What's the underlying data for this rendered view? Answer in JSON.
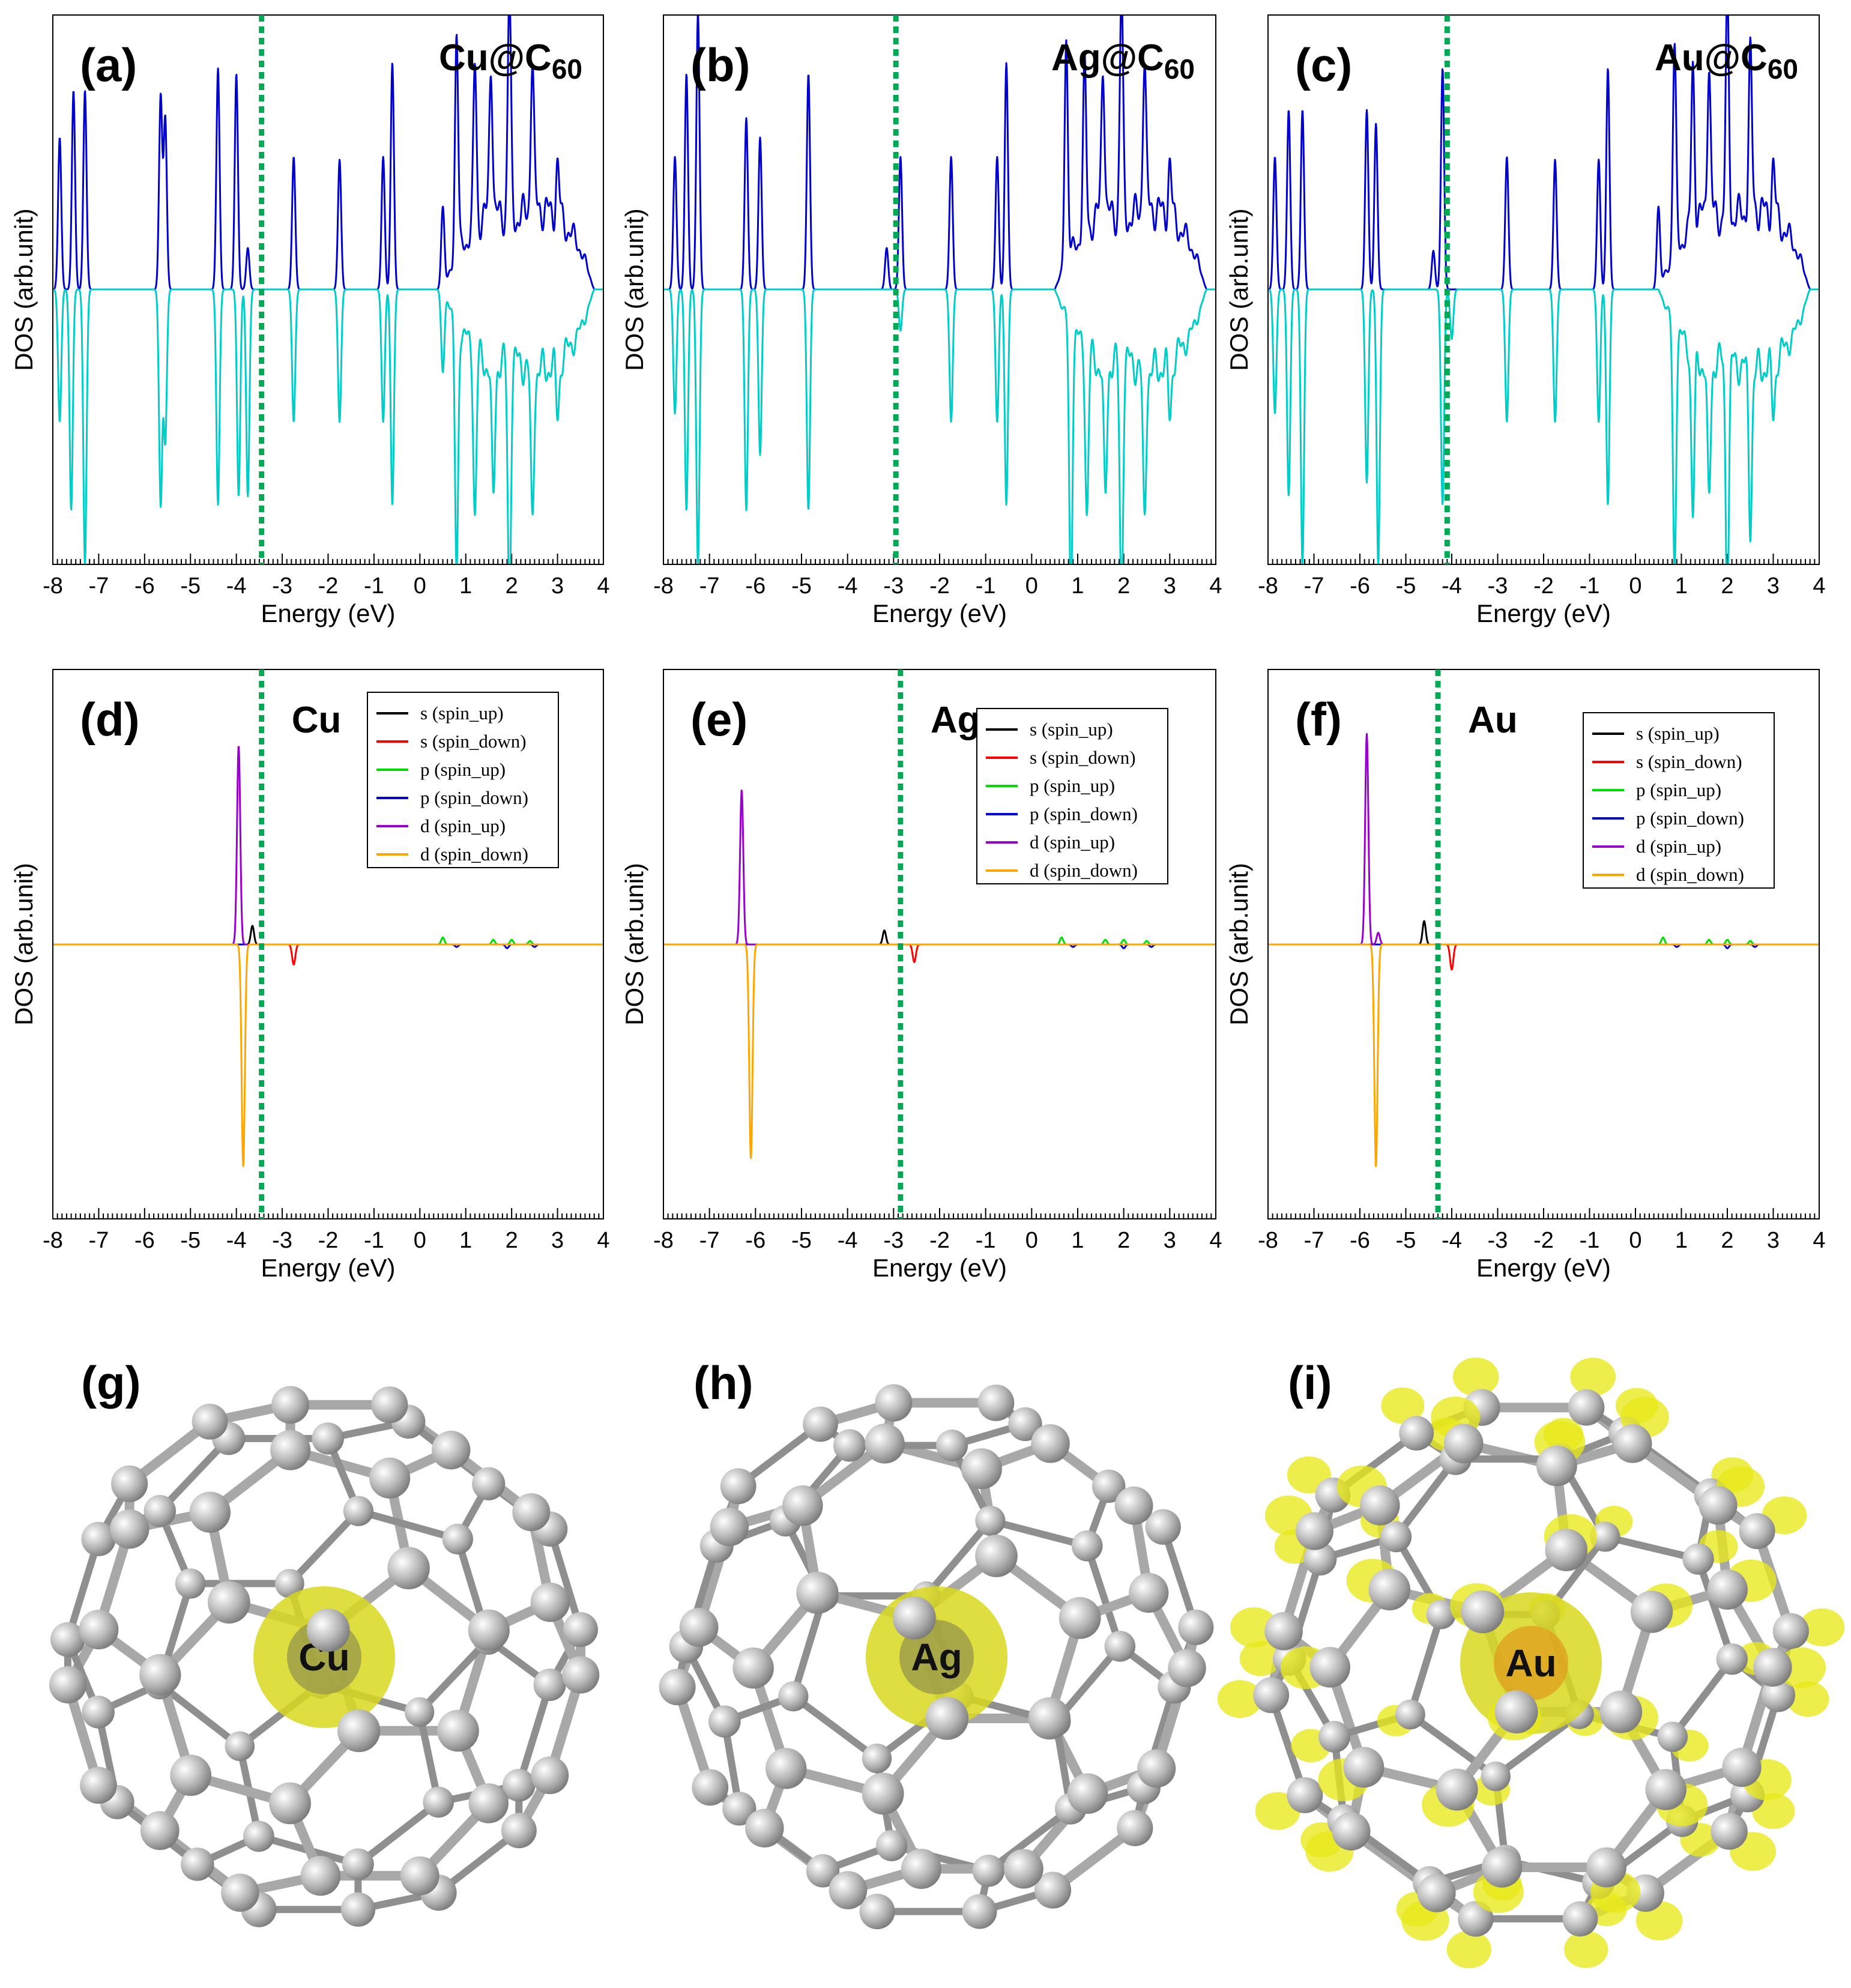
{
  "chart_data": [
    {
      "id": "a",
      "type": "line",
      "panel_label": "(a)",
      "title": "Cu@C",
      "title_sub": "60",
      "xlabel": "Energy (eV)",
      "ylabel": "DOS (arb.unit)",
      "xlim": [
        -8,
        4
      ],
      "x_ticks": [
        "-8",
        "-7",
        "-6",
        "-5",
        "-4",
        "-3",
        "-2",
        "-1",
        "0",
        "1",
        "2",
        "3",
        "4"
      ],
      "fermi_level": -3.45,
      "series": [
        {
          "name": "spin_up",
          "color": "#0000cc",
          "peaks": [
            [
              -7.85,
              0.55
            ],
            [
              -7.55,
              0.72
            ],
            [
              -7.3,
              0.72
            ],
            [
              -5.65,
              0.7
            ],
            [
              -5.55,
              0.62
            ],
            [
              -4.4,
              0.8
            ],
            [
              -4.0,
              0.78
            ],
            [
              -3.75,
              0.15
            ],
            [
              -2.75,
              0.48
            ],
            [
              -1.75,
              0.47
            ],
            [
              -0.8,
              0.48
            ],
            [
              -0.6,
              0.82
            ],
            [
              0.5,
              0.3
            ],
            [
              0.8,
              0.82
            ],
            [
              1.2,
              0.6
            ],
            [
              1.55,
              0.55
            ],
            [
              1.95,
              0.82
            ],
            [
              2.45,
              0.55
            ],
            [
              3.0,
              0.2
            ]
          ],
          "continuum": [
            [
              0.5,
              0.0
            ],
            [
              0.9,
              0.15
            ],
            [
              1.5,
              0.28
            ],
            [
              2.0,
              0.25
            ],
            [
              2.6,
              0.3
            ],
            [
              3.1,
              0.25
            ],
            [
              3.5,
              0.15
            ],
            [
              3.8,
              0.0
            ]
          ]
        },
        {
          "name": "spin_down",
          "color": "#00ccc8",
          "peaks": [
            [
              -7.85,
              -0.48
            ],
            [
              -7.6,
              -0.8
            ],
            [
              -7.3,
              -1.0
            ],
            [
              -5.65,
              -0.78
            ],
            [
              -5.55,
              -0.55
            ],
            [
              -4.4,
              -0.78
            ],
            [
              -3.95,
              -0.75
            ],
            [
              -3.75,
              -0.75
            ],
            [
              -2.75,
              -0.48
            ],
            [
              -1.75,
              -0.48
            ],
            [
              -0.8,
              -0.48
            ],
            [
              -0.6,
              -0.78
            ],
            [
              0.5,
              -0.3
            ],
            [
              0.8,
              -0.92
            ],
            [
              1.2,
              -0.6
            ],
            [
              1.6,
              -0.5
            ],
            [
              1.95,
              -0.88
            ],
            [
              2.45,
              -0.55
            ],
            [
              3.0,
              -0.2
            ]
          ],
          "continuum": [
            [
              0.5,
              0.0
            ],
            [
              0.9,
              -0.15
            ],
            [
              1.5,
              -0.28
            ],
            [
              2.0,
              -0.25
            ],
            [
              2.6,
              -0.3
            ],
            [
              3.1,
              -0.25
            ],
            [
              3.5,
              -0.15
            ],
            [
              3.8,
              0.0
            ]
          ]
        }
      ]
    },
    {
      "id": "b",
      "type": "line",
      "panel_label": "(b)",
      "title": "Ag@C",
      "title_sub": "60",
      "xlabel": "Energy (eV)",
      "ylabel": "DOS (arb.unit)",
      "xlim": [
        -8,
        4
      ],
      "x_ticks": [
        "-8",
        "-7",
        "-6",
        "-5",
        "-4",
        "-3",
        "-2",
        "-1",
        "0",
        "1",
        "2",
        "3",
        "4"
      ],
      "fermi_level": -2.95,
      "series": [
        {
          "name": "spin_up",
          "color": "#0000cc",
          "peaks": [
            [
              -7.75,
              0.48
            ],
            [
              -7.5,
              0.78
            ],
            [
              -7.25,
              1.0
            ],
            [
              -6.2,
              0.62
            ],
            [
              -5.9,
              0.55
            ],
            [
              -4.85,
              0.78
            ],
            [
              -3.15,
              0.15
            ],
            [
              -2.85,
              0.48
            ],
            [
              -1.75,
              0.48
            ],
            [
              -0.75,
              0.48
            ],
            [
              -0.55,
              0.82
            ],
            [
              0.75,
              0.82
            ],
            [
              1.15,
              0.6
            ],
            [
              1.55,
              0.55
            ],
            [
              1.95,
              0.82
            ],
            [
              2.45,
              0.55
            ],
            [
              3.0,
              0.2
            ]
          ],
          "continuum": [
            [
              0.5,
              0.0
            ],
            [
              0.9,
              0.15
            ],
            [
              1.5,
              0.28
            ],
            [
              2.0,
              0.25
            ],
            [
              2.6,
              0.3
            ],
            [
              3.1,
              0.25
            ],
            [
              3.5,
              0.15
            ],
            [
              3.8,
              0.0
            ]
          ]
        },
        {
          "name": "spin_down",
          "color": "#00ccc8",
          "peaks": [
            [
              -7.75,
              -0.45
            ],
            [
              -7.5,
              -0.8
            ],
            [
              -7.25,
              -1.0
            ],
            [
              -6.2,
              -0.8
            ],
            [
              -5.9,
              -0.6
            ],
            [
              -4.85,
              -0.8
            ],
            [
              -2.85,
              -0.15
            ],
            [
              -1.75,
              -0.48
            ],
            [
              -0.75,
              -0.48
            ],
            [
              -0.55,
              -0.78
            ],
            [
              0.85,
              -1.0
            ],
            [
              1.2,
              -0.6
            ],
            [
              1.6,
              -0.5
            ],
            [
              1.95,
              -0.88
            ],
            [
              2.45,
              -0.55
            ],
            [
              3.0,
              -0.2
            ]
          ],
          "continuum": [
            [
              0.5,
              0.0
            ],
            [
              0.9,
              -0.15
            ],
            [
              1.5,
              -0.28
            ],
            [
              2.0,
              -0.25
            ],
            [
              2.6,
              -0.3
            ],
            [
              3.1,
              -0.25
            ],
            [
              3.5,
              -0.15
            ],
            [
              3.8,
              0.0
            ]
          ]
        }
      ]
    },
    {
      "id": "c",
      "type": "line",
      "panel_label": "(c)",
      "title": "Au@C",
      "title_sub": "60",
      "xlabel": "Energy (eV)",
      "ylabel": "DOS (arb.unit)",
      "xlim": [
        -8,
        4
      ],
      "x_ticks": [
        "-8",
        "-7",
        "-6",
        "-5",
        "-4",
        "-3",
        "-2",
        "-1",
        "0",
        "1",
        "2",
        "3",
        "4"
      ],
      "fermi_level": -4.1,
      "series": [
        {
          "name": "spin_up",
          "color": "#0000cc",
          "peaks": [
            [
              -7.85,
              0.48
            ],
            [
              -7.55,
              0.65
            ],
            [
              -7.25,
              0.65
            ],
            [
              -5.85,
              0.65
            ],
            [
              -5.65,
              0.6
            ],
            [
              -4.4,
              0.14
            ],
            [
              -4.2,
              0.8
            ],
            [
              -2.8,
              0.48
            ],
            [
              -1.75,
              0.47
            ],
            [
              -0.8,
              0.47
            ],
            [
              -0.6,
              0.8
            ],
            [
              0.5,
              0.3
            ],
            [
              0.85,
              0.75
            ],
            [
              1.25,
              0.6
            ],
            [
              1.6,
              0.55
            ],
            [
              2.0,
              0.8
            ],
            [
              2.5,
              0.55
            ],
            [
              3.0,
              0.2
            ]
          ],
          "continuum": [
            [
              0.5,
              0.0
            ],
            [
              0.9,
              0.15
            ],
            [
              1.5,
              0.28
            ],
            [
              2.0,
              0.25
            ],
            [
              2.6,
              0.3
            ],
            [
              3.1,
              0.25
            ],
            [
              3.5,
              0.15
            ],
            [
              3.8,
              0.0
            ]
          ]
        },
        {
          "name": "spin_down",
          "color": "#00ccc8",
          "peaks": [
            [
              -7.85,
              -0.45
            ],
            [
              -7.55,
              -0.75
            ],
            [
              -7.25,
              -1.0
            ],
            [
              -5.85,
              -0.7
            ],
            [
              -5.6,
              -1.0
            ],
            [
              -4.2,
              -0.78
            ],
            [
              -4.0,
              -0.18
            ],
            [
              -2.8,
              -0.48
            ],
            [
              -1.75,
              -0.48
            ],
            [
              -0.8,
              -0.48
            ],
            [
              -0.6,
              -0.78
            ],
            [
              0.85,
              -0.88
            ],
            [
              1.25,
              -0.6
            ],
            [
              1.6,
              -0.5
            ],
            [
              2.0,
              -0.88
            ],
            [
              2.5,
              -0.55
            ],
            [
              3.0,
              -0.2
            ]
          ],
          "continuum": [
            [
              0.5,
              0.0
            ],
            [
              0.9,
              -0.15
            ],
            [
              1.5,
              -0.28
            ],
            [
              2.0,
              -0.25
            ],
            [
              2.6,
              -0.3
            ],
            [
              3.1,
              -0.25
            ],
            [
              3.5,
              -0.15
            ],
            [
              3.8,
              0.0
            ]
          ]
        }
      ]
    },
    {
      "id": "d",
      "type": "line",
      "panel_label": "(d)",
      "title": "Cu",
      "xlabel": "Energy (eV)",
      "ylabel": "DOS (arb.unit)",
      "xlim": [
        -8,
        4
      ],
      "x_ticks": [
        "-8",
        "-7",
        "-6",
        "-5",
        "-4",
        "-3",
        "-2",
        "-1",
        "0",
        "1",
        "2",
        "3",
        "4"
      ],
      "fermi_level": -3.45,
      "series": [
        {
          "name": "s (spin_up)",
          "color": "#000000",
          "peaks": [
            [
              -3.65,
              0.08
            ]
          ]
        },
        {
          "name": "s (spin_down)",
          "color": "#ff0000",
          "peaks": [
            [
              -2.75,
              -0.08
            ]
          ]
        },
        {
          "name": "p (spin_up)",
          "color": "#00dd00",
          "peaks": [
            [
              0.5,
              0.03
            ],
            [
              1.6,
              0.02
            ],
            [
              2.0,
              0.02
            ],
            [
              2.4,
              0.015
            ]
          ]
        },
        {
          "name": "p (spin_down)",
          "color": "#0000dd",
          "peaks": [
            [
              0.8,
              -0.01
            ],
            [
              1.9,
              -0.015
            ],
            [
              2.5,
              -0.01
            ]
          ]
        },
        {
          "name": "d (spin_up)",
          "color": "#9900cc",
          "peaks": [
            [
              -3.95,
              0.85
            ]
          ]
        },
        {
          "name": "d (spin_down)",
          "color": "#ffa500",
          "peaks": [
            [
              -3.85,
              -0.88
            ]
          ]
        }
      ]
    },
    {
      "id": "e",
      "type": "line",
      "panel_label": "(e)",
      "title": "Ag",
      "xlabel": "Energy (eV)",
      "ylabel": "DOS (arb.unit)",
      "xlim": [
        -8,
        4
      ],
      "x_ticks": [
        "-8",
        "-7",
        "-6",
        "-5",
        "-4",
        "-3",
        "-2",
        "-1",
        "0",
        "1",
        "2",
        "3",
        "4"
      ],
      "fermi_level": -2.85,
      "series": [
        {
          "name": "s (spin_up)",
          "color": "#000000",
          "peaks": [
            [
              -3.2,
              0.06
            ]
          ]
        },
        {
          "name": "s (spin_down)",
          "color": "#ff0000",
          "peaks": [
            [
              -2.55,
              -0.07
            ]
          ]
        },
        {
          "name": "p (spin_up)",
          "color": "#00dd00",
          "peaks": [
            [
              0.65,
              0.03
            ],
            [
              1.6,
              0.02
            ],
            [
              2.0,
              0.02
            ],
            [
              2.5,
              0.015
            ]
          ]
        },
        {
          "name": "p (spin_down)",
          "color": "#0000dd",
          "peaks": [
            [
              0.9,
              -0.01
            ],
            [
              2.0,
              -0.015
            ],
            [
              2.6,
              -0.01
            ]
          ]
        },
        {
          "name": "d (spin_up)",
          "color": "#9900cc",
          "peaks": [
            [
              -6.3,
              0.66
            ]
          ]
        },
        {
          "name": "d (spin_down)",
          "color": "#ffa500",
          "peaks": [
            [
              -6.1,
              -0.85
            ]
          ]
        }
      ]
    },
    {
      "id": "f",
      "type": "line",
      "panel_label": "(f)",
      "title": "Au",
      "xlabel": "Energy (eV)",
      "ylabel": "DOS (arb.unit)",
      "xlim": [
        -8,
        4
      ],
      "x_ticks": [
        "-8",
        "-7",
        "-6",
        "-5",
        "-4",
        "-3",
        "-2",
        "-1",
        "0",
        "1",
        "2",
        "3",
        "4"
      ],
      "fermi_level": -4.3,
      "series": [
        {
          "name": "s (spin_up)",
          "color": "#000000",
          "peaks": [
            [
              -4.6,
              0.1
            ]
          ]
        },
        {
          "name": "s (spin_down)",
          "color": "#ff0000",
          "peaks": [
            [
              -4.0,
              -0.1
            ]
          ]
        },
        {
          "name": "p (spin_up)",
          "color": "#00dd00",
          "peaks": [
            [
              0.6,
              0.03
            ],
            [
              1.6,
              0.02
            ],
            [
              2.0,
              0.02
            ],
            [
              2.5,
              0.015
            ]
          ]
        },
        {
          "name": "p (spin_down)",
          "color": "#0000dd",
          "peaks": [
            [
              0.9,
              -0.01
            ],
            [
              2.0,
              -0.015
            ],
            [
              2.6,
              -0.01
            ]
          ]
        },
        {
          "name": "d (spin_up)",
          "color": "#9900cc",
          "peaks": [
            [
              -5.85,
              0.9
            ],
            [
              -5.6,
              0.05
            ]
          ]
        },
        {
          "name": "d (spin_down)",
          "color": "#ffa500",
          "peaks": [
            [
              -5.65,
              -0.88
            ]
          ]
        }
      ]
    }
  ],
  "structures": [
    {
      "panel_label": "(g)",
      "atom_label": "Cu",
      "density_on_cage": false
    },
    {
      "panel_label": "(h)",
      "atom_label": "Ag",
      "density_on_cage": false
    },
    {
      "panel_label": "(i)",
      "atom_label": "Au",
      "density_on_cage": true
    }
  ],
  "colors": {
    "fermi_line": "#00aa55",
    "carbon": "#b4b4b4",
    "metal": "#d8d820",
    "density": "#e8e81a"
  }
}
